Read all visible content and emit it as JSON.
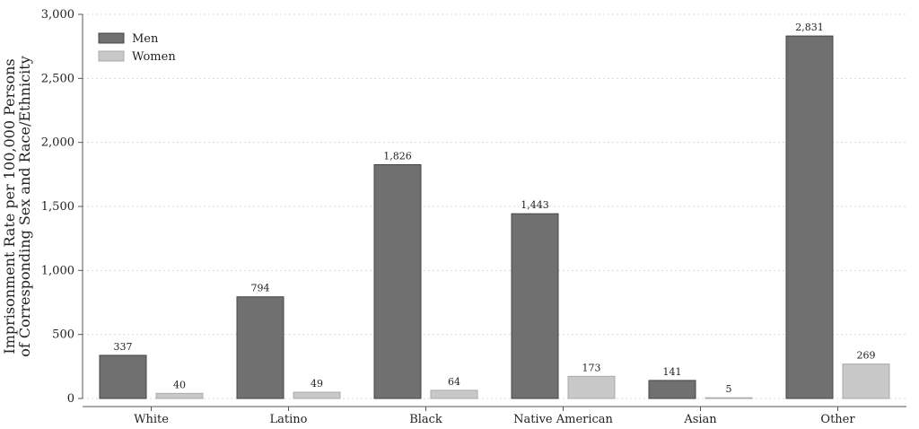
{
  "chart_data": {
    "type": "bar",
    "categories": [
      "White",
      "Latino",
      "Black",
      "Native American",
      "Asian",
      "Other"
    ],
    "series": [
      {
        "name": "Men",
        "values": [
          337,
          794,
          1826,
          1443,
          141,
          2831
        ],
        "labels": [
          "337",
          "794",
          "1,826",
          "1,443",
          "141",
          "2,831"
        ],
        "color": "#707070"
      },
      {
        "name": "Women",
        "values": [
          40,
          49,
          64,
          173,
          5,
          269
        ],
        "labels": [
          "40",
          "49",
          "64",
          "173",
          "5",
          "269"
        ],
        "color": "#c8c8c8"
      }
    ],
    "title": "",
    "xlabel": "",
    "ylabel_lines": [
      "Imprisonment Rate per 100,000 Persons",
      "of Corresponding Sex and Race/Ethnicity"
    ],
    "ylim": [
      0,
      3000
    ],
    "yticks": [
      0,
      500,
      1000,
      1500,
      2000,
      2500,
      3000
    ],
    "ytick_labels": [
      "0",
      "500",
      "1,000",
      "1,500",
      "2,000",
      "2,500",
      "3,000"
    ],
    "grid": true,
    "legend_position": "top-left"
  }
}
